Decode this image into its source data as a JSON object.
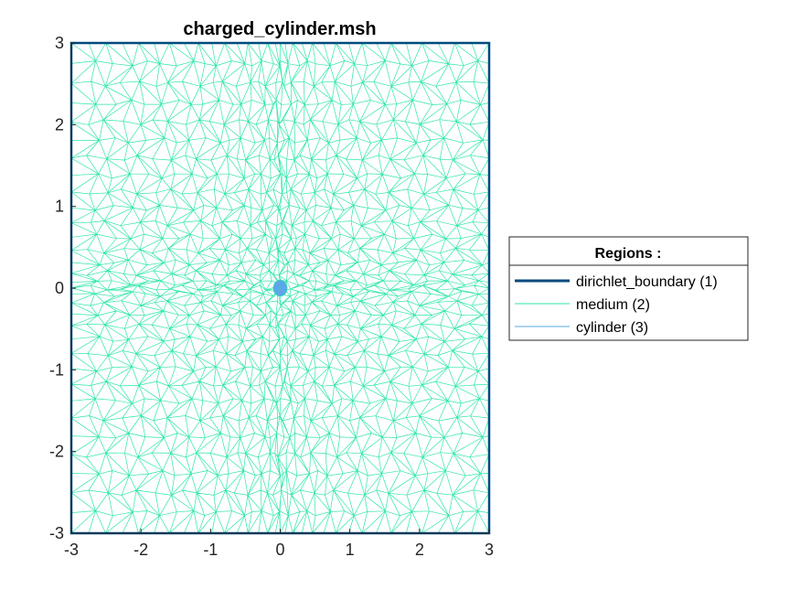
{
  "chart_data": {
    "type": "mesh",
    "title": "charged_cylinder.msh",
    "xlabel": "",
    "ylabel": "",
    "xlim": [
      -3,
      3
    ],
    "ylim": [
      -3,
      3
    ],
    "xticks": [
      -3,
      -2,
      -1,
      0,
      1,
      2,
      3
    ],
    "yticks": [
      -3,
      -2,
      -1,
      0,
      1,
      2,
      3
    ],
    "grid": false,
    "legend_position": "right",
    "legend_title": "Regions :",
    "regions": [
      {
        "name": "dirichlet_boundary (1)",
        "kind": "boundary",
        "color": "#004a7f"
      },
      {
        "name": "medium (2)",
        "kind": "mesh",
        "color": "#2ee6a8"
      },
      {
        "name": "cylinder (3)",
        "kind": "mesh",
        "color": "#5aa8e6"
      }
    ],
    "cylinder": {
      "center": [
        0,
        0
      ],
      "radius": 0.1
    },
    "domain": {
      "x": [
        -3,
        3
      ],
      "y": [
        -3,
        3
      ]
    }
  },
  "colors": {
    "axes": "#262626",
    "boundary": "#004a7f",
    "medium": "#2ee6a8",
    "cylinder_fill": "#5aa8e6"
  }
}
